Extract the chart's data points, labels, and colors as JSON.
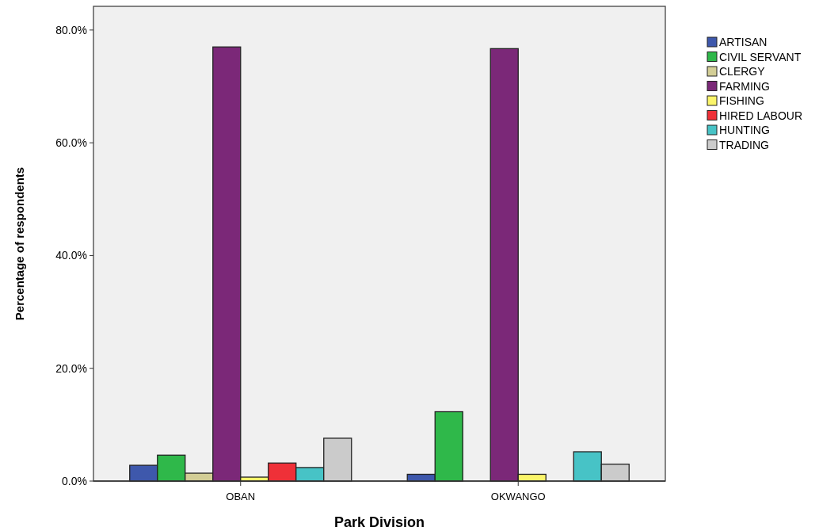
{
  "chart_data": {
    "type": "bar",
    "xlabel": "Park Division",
    "ylabel": "Percentage of respondents",
    "categories": [
      "OBAN",
      "OKWANGO"
    ],
    "series": [
      {
        "name": "ARTISAN",
        "color": "#3e58ac",
        "values": [
          2.8,
          1.2
        ]
      },
      {
        "name": "CIVIL SERVANT",
        "color": "#2fb84a",
        "values": [
          4.6,
          12.3
        ]
      },
      {
        "name": "CLERGY",
        "color": "#d3ce96",
        "values": [
          1.4,
          0
        ]
      },
      {
        "name": "FARMING",
        "color": "#7b2878",
        "values": [
          77.0,
          76.7
        ]
      },
      {
        "name": "FISHING",
        "color": "#fbf56a",
        "values": [
          0.7,
          1.2
        ]
      },
      {
        "name": "HIRED LABOUR",
        "color": "#ef3038",
        "values": [
          3.2,
          0
        ]
      },
      {
        "name": "HUNTING",
        "color": "#47c3c6",
        "values": [
          2.4,
          5.2
        ]
      },
      {
        "name": "TRADING",
        "color": "#cbcbcb",
        "values": [
          7.6,
          3.0
        ]
      }
    ],
    "ylim": [
      0,
      84.2
    ],
    "yticks": [
      {
        "value": 0,
        "label": "0.0%"
      },
      {
        "value": 20,
        "label": "20.0%"
      },
      {
        "value": 40,
        "label": "40.0%"
      },
      {
        "value": 60,
        "label": "60.0%"
      },
      {
        "value": 80,
        "label": "80.0%"
      }
    ],
    "grid": false,
    "legend": "right"
  }
}
